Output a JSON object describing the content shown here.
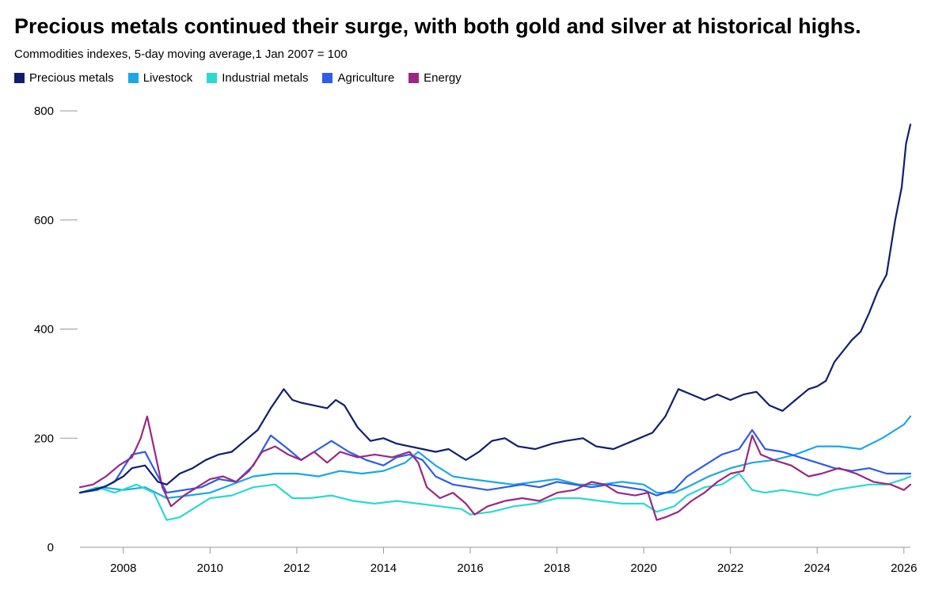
{
  "chart_data": {
    "type": "line",
    "title": "Precious metals continued their surge, with both gold and silver at historical highs.",
    "subtitle": "Commodities indexes, 5-day moving average,1 Jan 2007 = 100",
    "xlabel": "",
    "ylabel": "",
    "xlim": [
      2007.0,
      2026.15
    ],
    "ylim": [
      0,
      800
    ],
    "y_ticks": [
      0,
      200,
      400,
      600,
      800
    ],
    "x_ticks": [
      2008,
      2010,
      2012,
      2014,
      2016,
      2018,
      2020,
      2022,
      2024,
      2026
    ],
    "grid": false,
    "legend_position": "top-left",
    "series": [
      {
        "name": "Precious metals",
        "color": "#0f1f6e",
        "x": [
          2007.0,
          2007.3,
          2007.6,
          2008.0,
          2008.2,
          2008.5,
          2008.8,
          2009.0,
          2009.3,
          2009.6,
          2009.9,
          2010.2,
          2010.5,
          2010.8,
          2011.1,
          2011.4,
          2011.7,
          2011.9,
          2012.1,
          2012.4,
          2012.7,
          2012.9,
          2013.1,
          2013.4,
          2013.7,
          2014.0,
          2014.3,
          2014.6,
          2014.9,
          2015.2,
          2015.5,
          2015.9,
          2016.2,
          2016.5,
          2016.8,
          2017.1,
          2017.5,
          2017.9,
          2018.2,
          2018.6,
          2018.9,
          2019.3,
          2019.6,
          2019.9,
          2020.2,
          2020.5,
          2020.8,
          2021.1,
          2021.4,
          2021.7,
          2022.0,
          2022.3,
          2022.6,
          2022.9,
          2023.2,
          2023.5,
          2023.8,
          2024.0,
          2024.2,
          2024.4,
          2024.6,
          2024.8,
          2025.0,
          2025.2,
          2025.4,
          2025.6,
          2025.8,
          2025.95,
          2026.05,
          2026.15
        ],
        "values": [
          100,
          105,
          112,
          130,
          145,
          150,
          120,
          115,
          135,
          145,
          160,
          170,
          175,
          195,
          215,
          255,
          290,
          270,
          265,
          260,
          255,
          270,
          260,
          220,
          195,
          200,
          190,
          185,
          180,
          175,
          180,
          160,
          175,
          195,
          200,
          185,
          180,
          190,
          195,
          200,
          185,
          180,
          190,
          200,
          210,
          240,
          290,
          280,
          270,
          280,
          270,
          280,
          285,
          260,
          250,
          270,
          290,
          295,
          305,
          340,
          360,
          380,
          395,
          430,
          470,
          500,
          600,
          660,
          740,
          775
        ]
      },
      {
        "name": "Livestock",
        "color": "#1ba7e8",
        "x": [
          2007.0,
          2007.5,
          2008.0,
          2008.5,
          2009.0,
          2009.5,
          2010.0,
          2010.5,
          2011.0,
          2011.5,
          2012.0,
          2012.5,
          2013.0,
          2013.5,
          2014.0,
          2014.5,
          2014.8,
          2015.2,
          2015.6,
          2016.0,
          2016.5,
          2017.0,
          2017.5,
          2018.0,
          2018.5,
          2019.0,
          2019.5,
          2020.0,
          2020.3,
          2020.7,
          2021.0,
          2021.5,
          2022.0,
          2022.5,
          2023.0,
          2023.5,
          2024.0,
          2024.5,
          2025.0,
          2025.5,
          2026.0,
          2026.15
        ],
        "values": [
          100,
          110,
          105,
          110,
          90,
          95,
          100,
          115,
          130,
          135,
          135,
          130,
          140,
          135,
          140,
          155,
          175,
          150,
          130,
          125,
          120,
          115,
          120,
          125,
          115,
          115,
          120,
          115,
          100,
          100,
          110,
          130,
          145,
          155,
          160,
          170,
          185,
          185,
          180,
          200,
          225,
          240
        ]
      },
      {
        "name": "Industrial metals",
        "color": "#2ad9d0",
        "x": [
          2007.0,
          2007.4,
          2007.8,
          2008.3,
          2008.7,
          2009.0,
          2009.3,
          2009.7,
          2010.0,
          2010.5,
          2011.0,
          2011.5,
          2011.9,
          2012.3,
          2012.8,
          2013.3,
          2013.8,
          2014.3,
          2014.8,
          2015.3,
          2015.8,
          2016.0,
          2016.5,
          2017.0,
          2017.5,
          2018.0,
          2018.5,
          2019.0,
          2019.5,
          2020.0,
          2020.3,
          2020.7,
          2021.0,
          2021.4,
          2021.8,
          2022.2,
          2022.5,
          2022.8,
          2023.2,
          2023.6,
          2024.0,
          2024.4,
          2024.8,
          2025.2,
          2025.6,
          2026.0,
          2026.15
        ],
        "values": [
          100,
          110,
          100,
          115,
          100,
          50,
          55,
          75,
          90,
          95,
          110,
          115,
          90,
          90,
          95,
          85,
          80,
          85,
          80,
          75,
          70,
          60,
          65,
          75,
          80,
          90,
          90,
          85,
          80,
          80,
          65,
          75,
          95,
          110,
          115,
          135,
          105,
          100,
          105,
          100,
          95,
          105,
          110,
          115,
          115,
          125,
          130
        ]
      },
      {
        "name": "Agriculture",
        "color": "#2f5ce8",
        "x": [
          2007.0,
          2007.4,
          2007.8,
          2008.2,
          2008.5,
          2008.8,
          2009.0,
          2009.4,
          2009.8,
          2010.2,
          2010.6,
          2011.0,
          2011.4,
          2011.8,
          2012.1,
          2012.5,
          2012.8,
          2013.2,
          2013.6,
          2014.0,
          2014.3,
          2014.6,
          2014.9,
          2015.2,
          2015.6,
          2016.0,
          2016.4,
          2016.8,
          2017.2,
          2017.6,
          2018.0,
          2018.4,
          2018.8,
          2019.2,
          2019.6,
          2020.0,
          2020.3,
          2020.7,
          2021.0,
          2021.4,
          2021.8,
          2022.2,
          2022.5,
          2022.8,
          2023.2,
          2023.6,
          2024.0,
          2024.4,
          2024.8,
          2025.2,
          2025.6,
          2026.0,
          2026.15
        ],
        "values": [
          100,
          105,
          120,
          170,
          175,
          130,
          100,
          105,
          110,
          125,
          120,
          150,
          205,
          180,
          160,
          180,
          195,
          175,
          160,
          150,
          165,
          170,
          160,
          130,
          115,
          110,
          105,
          110,
          115,
          110,
          120,
          115,
          110,
          115,
          110,
          105,
          95,
          105,
          130,
          150,
          170,
          180,
          215,
          180,
          175,
          165,
          155,
          145,
          140,
          145,
          135,
          135,
          135
        ]
      },
      {
        "name": "Energy",
        "color": "#9b2782",
        "x": [
          2007.0,
          2007.3,
          2007.6,
          2007.9,
          2008.2,
          2008.4,
          2008.55,
          2008.7,
          2008.9,
          2009.1,
          2009.4,
          2009.7,
          2010.0,
          2010.3,
          2010.6,
          2010.9,
          2011.2,
          2011.5,
          2011.8,
          2012.1,
          2012.4,
          2012.7,
          2013.0,
          2013.4,
          2013.8,
          2014.2,
          2014.6,
          2014.8,
          2015.0,
          2015.3,
          2015.6,
          2015.9,
          2016.1,
          2016.4,
          2016.8,
          2017.2,
          2017.6,
          2018.0,
          2018.4,
          2018.8,
          2019.1,
          2019.4,
          2019.8,
          2020.1,
          2020.3,
          2020.5,
          2020.8,
          2021.1,
          2021.4,
          2021.7,
          2022.0,
          2022.3,
          2022.5,
          2022.7,
          2023.0,
          2023.4,
          2023.8,
          2024.1,
          2024.5,
          2024.9,
          2025.3,
          2025.7,
          2026.0,
          2026.15
        ],
        "values": [
          110,
          115,
          130,
          150,
          165,
          200,
          240,
          185,
          110,
          75,
          95,
          110,
          125,
          130,
          120,
          140,
          175,
          185,
          170,
          160,
          175,
          155,
          175,
          165,
          170,
          165,
          175,
          155,
          110,
          90,
          100,
          80,
          60,
          75,
          85,
          90,
          85,
          100,
          105,
          120,
          115,
          100,
          95,
          100,
          50,
          55,
          65,
          85,
          100,
          120,
          135,
          140,
          205,
          170,
          160,
          150,
          130,
          135,
          145,
          135,
          120,
          115,
          105,
          115
        ]
      }
    ]
  }
}
